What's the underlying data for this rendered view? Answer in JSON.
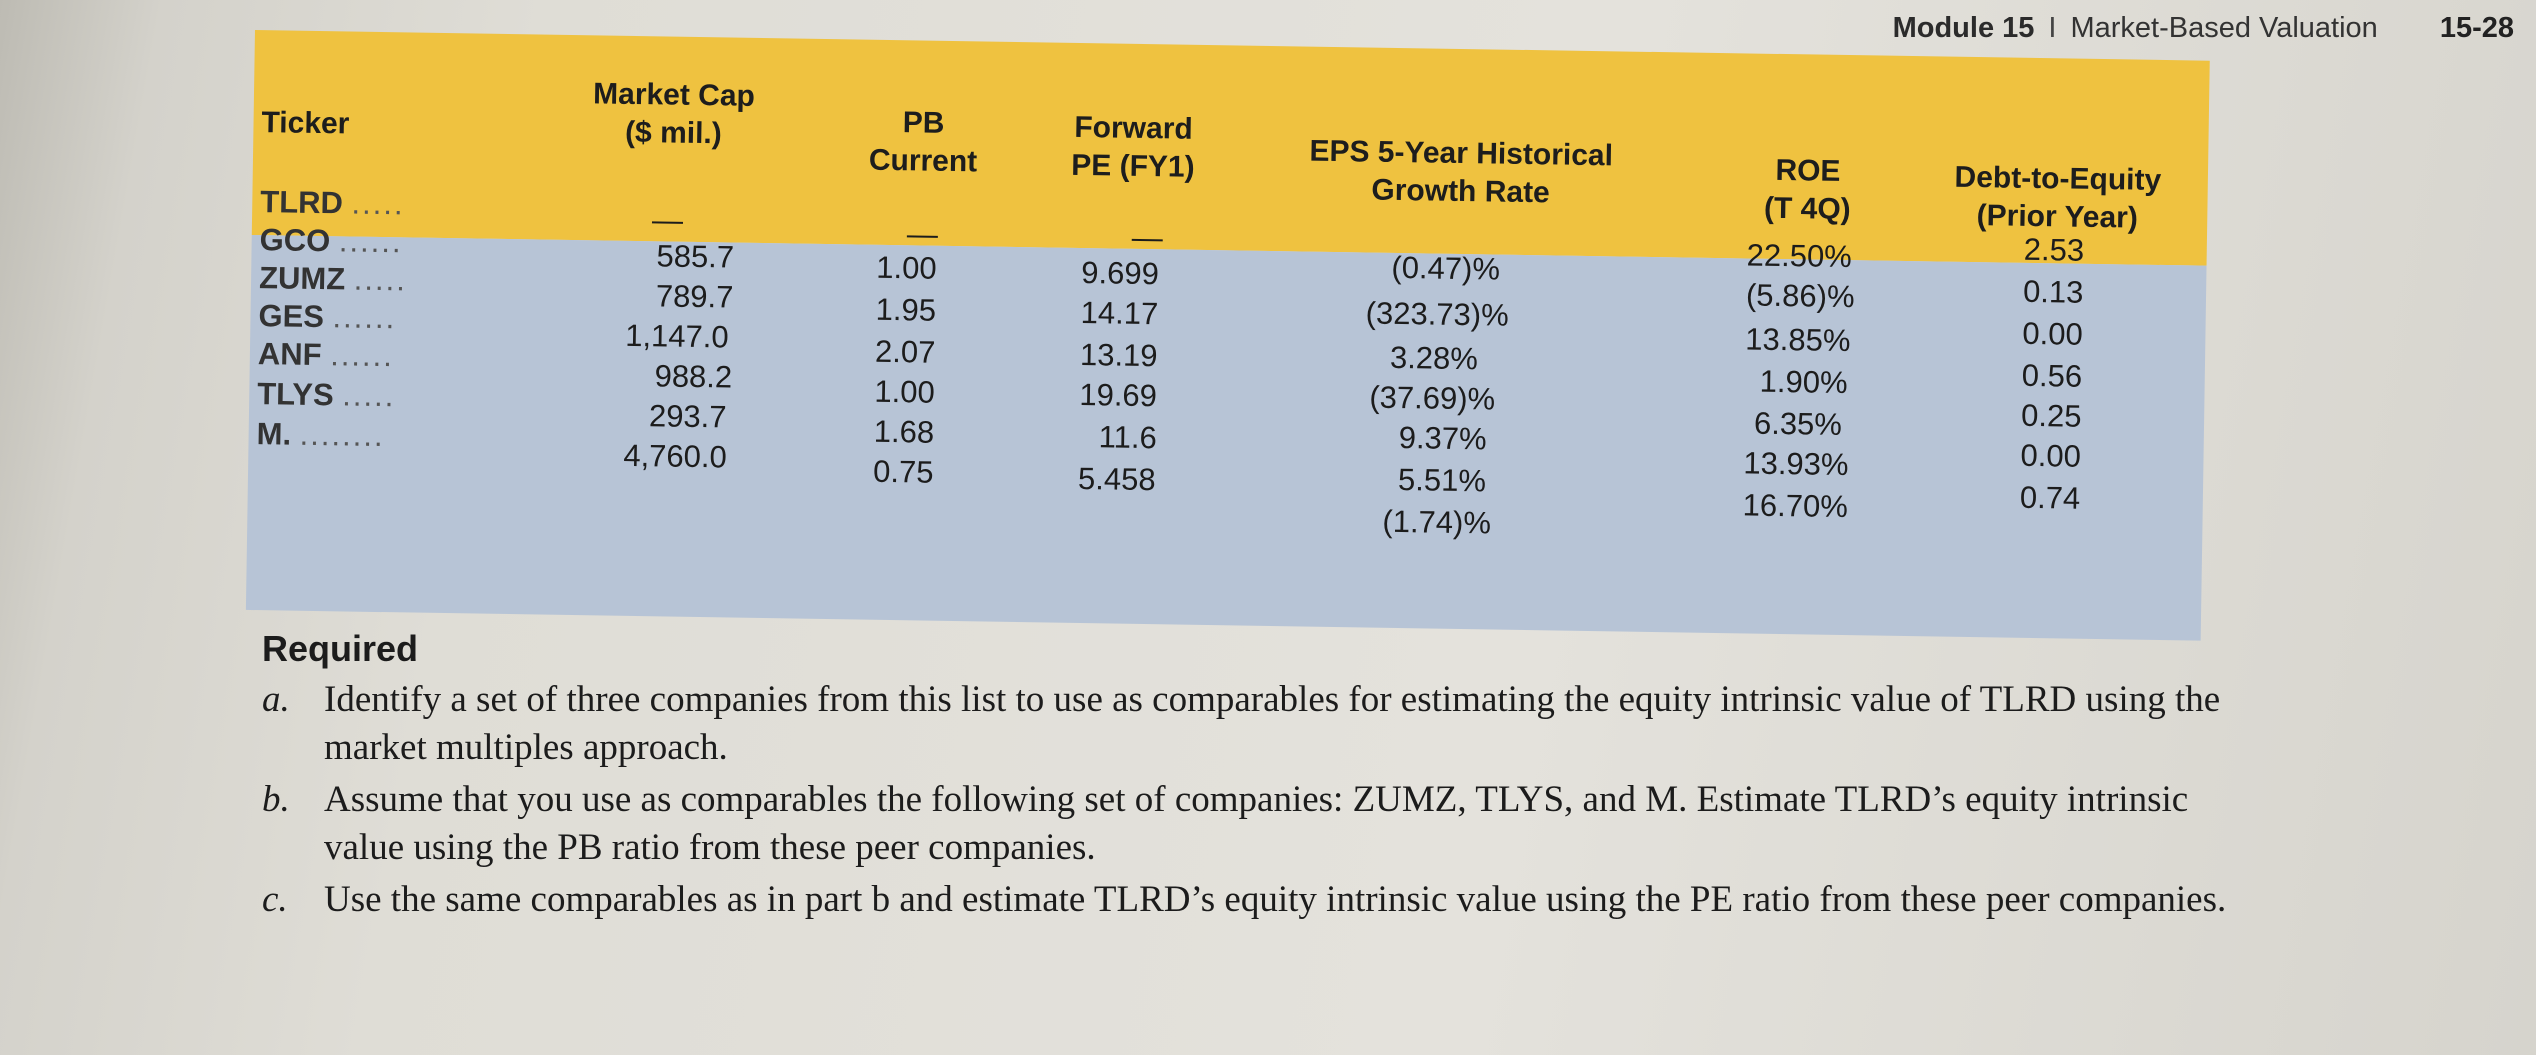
{
  "header": {
    "module": "Module 15",
    "separator": "I",
    "title": "Market-Based Valuation",
    "page_number": "15-28"
  },
  "table": {
    "columns": {
      "ticker": "Ticker",
      "market_cap_1": "Market Cap",
      "market_cap_2": "($ mil.)",
      "pb_1": "PB",
      "pb_2": "Current",
      "fpe_1": "Forward",
      "fpe_2": "PE (FY1)",
      "eps_1": "EPS 5-Year Historical",
      "eps_2": "Growth Rate",
      "roe_1": "ROE",
      "roe_2": "(T 4Q)",
      "de_1": "Debt-to-Equity",
      "de_2": "(Prior Year)"
    },
    "rows": [
      {
        "ticker": "TLRD",
        "dots": ".....",
        "market_cap": "—",
        "pb": "—",
        "fpe": "—",
        "eps": "(0.47)%",
        "roe": "22.50%",
        "de": "2.53"
      },
      {
        "ticker": "GCO",
        "dots": "......",
        "market_cap": "585.7",
        "pb": "1.00",
        "fpe": "9.699",
        "eps": "(323.73)%",
        "roe": "(5.86)%",
        "de": "0.13"
      },
      {
        "ticker": "ZUMZ",
        "dots": ".....",
        "market_cap": "789.7",
        "pb": "1.95",
        "fpe": "14.17",
        "eps": "3.28%",
        "roe": "13.85%",
        "de": "0.00"
      },
      {
        "ticker": "GES",
        "dots": "......",
        "market_cap": "1,147.0",
        "pb": "2.07",
        "fpe": "13.19",
        "eps": "(37.69)%",
        "roe": "1.90%",
        "de": "0.56"
      },
      {
        "ticker": "ANF",
        "dots": "......",
        "market_cap": "988.2",
        "pb": "1.00",
        "fpe": "19.69",
        "eps": "9.37%",
        "roe": "6.35%",
        "de": "0.25"
      },
      {
        "ticker": "TLYS",
        "dots": ".....",
        "market_cap": "293.7",
        "pb": "1.68",
        "fpe": "11.6",
        "eps": "5.51%",
        "roe": "13.93%",
        "de": "0.00"
      },
      {
        "ticker": "M.",
        "dots": "........",
        "market_cap": "4,760.0",
        "pb": "0.75",
        "fpe": "5.458",
        "eps": "(1.74)%",
        "roe": "16.70%",
        "de": "0.74"
      }
    ]
  },
  "required": {
    "title": "Required",
    "items": [
      {
        "letter": "a.",
        "text": "Identify a set of three companies from this list to use as comparables for estimating the equity intrinsic value of TLRD using the market multiples approach."
      },
      {
        "letter": "b.",
        "text": "Assume that you use as comparables the following set of companies: ZUMZ, TLYS, and M. Estimate TLRD’s equity intrinsic value using the PB ratio from these peer companies."
      },
      {
        "letter": "c.",
        "text": "Use the same comparables as in part b and estimate TLRD’s equity intrinsic value using the PE ratio from these peer companies."
      }
    ]
  },
  "colors": {
    "header_band": "#efc240",
    "body_band": "#b7c4d6",
    "paper": "#e4e2dc"
  }
}
